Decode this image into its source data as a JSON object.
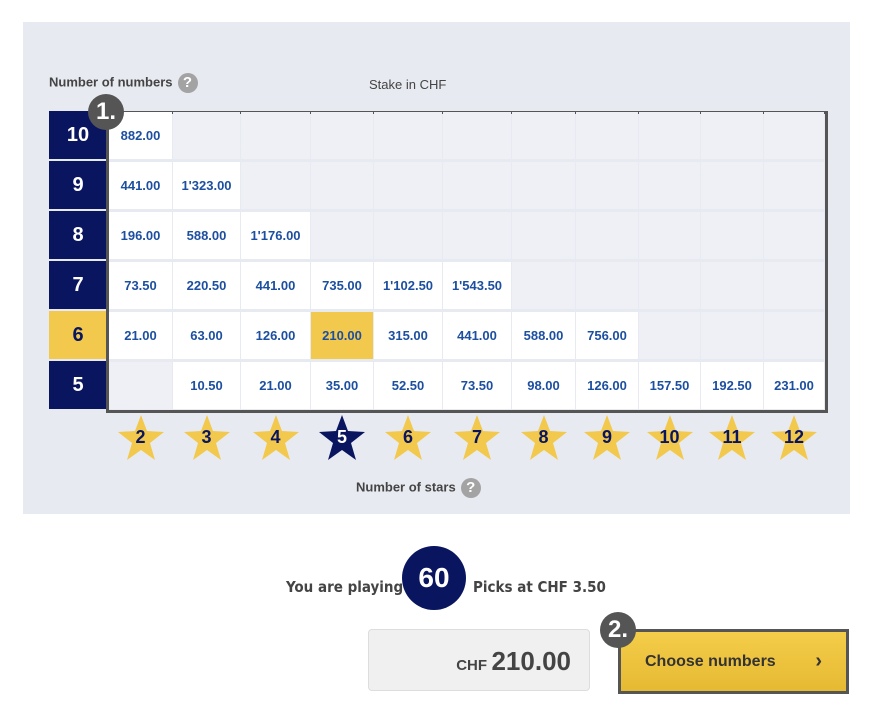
{
  "labels": {
    "numbers": "Number of numbers",
    "stake": "Stake in CHF",
    "stars": "Number of stars",
    "help": "?"
  },
  "badges": {
    "one": "1.",
    "two": "2."
  },
  "rows": [
    {
      "n": "10",
      "cells": [
        "882.00",
        "",
        "",
        "",
        "",
        "",
        "",
        "",
        "",
        "",
        ""
      ]
    },
    {
      "n": "9",
      "cells": [
        "441.00",
        "1'323.00",
        "",
        "",
        "",
        "",
        "",
        "",
        "",
        "",
        ""
      ]
    },
    {
      "n": "8",
      "cells": [
        "196.00",
        "588.00",
        "1'176.00",
        "",
        "",
        "",
        "",
        "",
        "",
        "",
        ""
      ]
    },
    {
      "n": "7",
      "cells": [
        "73.50",
        "220.50",
        "441.00",
        "735.00",
        "1'102.50",
        "1'543.50",
        "",
        "",
        "",
        "",
        ""
      ]
    },
    {
      "n": "6",
      "selected": true,
      "cells": [
        "21.00",
        "63.00",
        "126.00",
        "210.00",
        "315.00",
        "441.00",
        "588.00",
        "756.00",
        "",
        "",
        ""
      ]
    },
    {
      "n": "5",
      "cells": [
        "",
        "10.50",
        "21.00",
        "35.00",
        "52.50",
        "73.50",
        "98.00",
        "126.00",
        "157.50",
        "192.50",
        "231.00"
      ]
    }
  ],
  "filled_rows": [
    1,
    2,
    3,
    6,
    8,
    11
  ],
  "stars": [
    "2",
    "3",
    "4",
    "5",
    "6",
    "7",
    "8",
    "9",
    "10",
    "11",
    "12"
  ],
  "selected_star": "5",
  "selected_cell": {
    "numbers": "6",
    "stars": "5",
    "value": "210.00"
  },
  "summary": {
    "prefix": "You are playing",
    "count": "60",
    "suffix": "Picks at CHF 3.50",
    "currency": "CHF",
    "total": "210.00"
  },
  "button": {
    "label": "Choose numbers",
    "icon": "chevron-right-icon"
  },
  "colors": {
    "navy": "#0a1560",
    "yellow": "#f2c94c",
    "value": "#1d4fa0"
  }
}
